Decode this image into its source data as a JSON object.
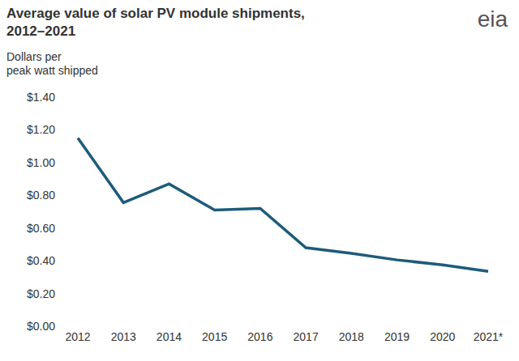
{
  "chart_data": {
    "type": "line",
    "title": "Average value of solar PV module shipments, 2012–2021",
    "y_label": "Dollars per peak watt shipped",
    "logo": "eia",
    "categories": [
      "2012",
      "2013",
      "2014",
      "2015",
      "2016",
      "2017",
      "2018",
      "2019",
      "2020",
      "2021*"
    ],
    "values": [
      1.15,
      0.755,
      0.87,
      0.71,
      0.72,
      0.48,
      0.445,
      0.405,
      0.375,
      0.335
    ],
    "color": "#1d5b7b",
    "ylim": [
      0,
      1.4
    ],
    "yticks": [
      {
        "value": 0,
        "label": "$0.00"
      },
      {
        "value": 0.2,
        "label": "$0.20"
      },
      {
        "value": 0.4,
        "label": "$0.40"
      },
      {
        "value": 0.6,
        "label": "$0.60"
      },
      {
        "value": 0.8,
        "label": "$0.80"
      },
      {
        "value": 1.0,
        "label": "$1.00"
      },
      {
        "value": 1.2,
        "label": "$1.20"
      },
      {
        "value": 1.4,
        "label": "$1.40"
      }
    ],
    "grid": false
  }
}
